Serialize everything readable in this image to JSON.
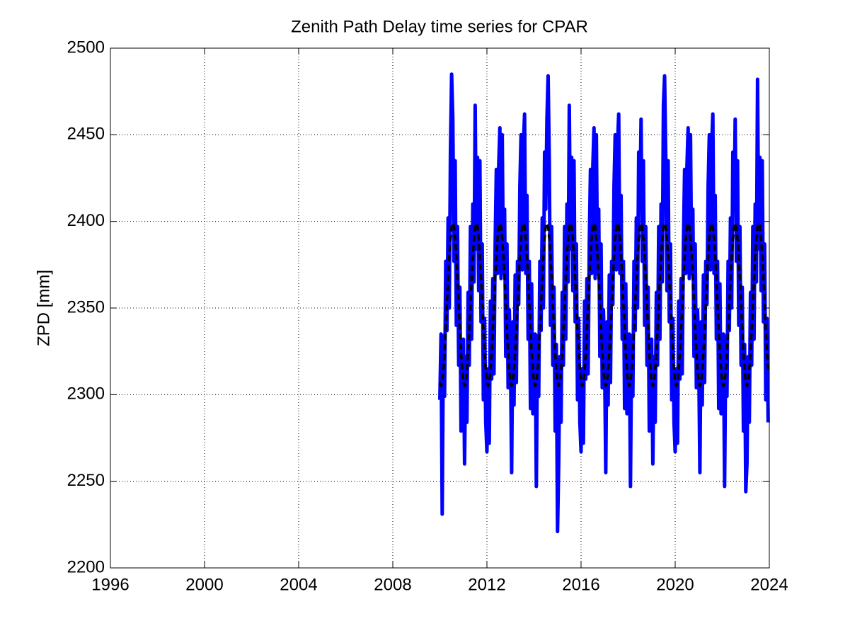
{
  "chart_data": {
    "type": "line",
    "title": "Zenith Path Delay time series for CPAR",
    "ylabel": "ZPD [mm]",
    "xlim": [
      1996,
      2024
    ],
    "xticks": [
      1996,
      2000,
      2004,
      2008,
      2012,
      2016,
      2020,
      2024
    ],
    "ylim": [
      2200,
      2500
    ],
    "yticks": [
      2200,
      2250,
      2300,
      2350,
      2400,
      2450,
      2500
    ],
    "grid": true,
    "x": [
      2010,
      2010.05,
      2010.1,
      2010.15,
      2010.2,
      2010.25,
      2010.3,
      2010.35,
      2010.4,
      2010.45,
      2010.5,
      2010.55,
      2010.6,
      2010.65,
      2010.7,
      2010.75,
      2010.8,
      2010.85,
      2010.9,
      2010.95,
      2011,
      2011.05,
      2011.1,
      2011.15,
      2011.2,
      2011.25,
      2011.3,
      2011.35,
      2011.4,
      2011.45,
      2011.5,
      2011.55,
      2011.6,
      2011.65,
      2011.7,
      2011.75,
      2011.8,
      2011.85,
      2011.9,
      2011.95,
      2012,
      2012.05,
      2012.1,
      2012.15,
      2012.2,
      2012.25,
      2012.3,
      2012.35,
      2012.4,
      2012.45,
      2012.5,
      2012.55,
      2012.6,
      2012.65,
      2012.7,
      2012.75,
      2012.8,
      2012.85,
      2012.9,
      2012.95,
      2013,
      2013.05,
      2013.1,
      2013.15,
      2013.2,
      2013.25,
      2013.3,
      2013.35,
      2013.4,
      2013.45,
      2013.5,
      2013.55,
      2013.6,
      2013.65,
      2013.7,
      2013.75,
      2013.8,
      2013.85,
      2013.9,
      2013.95,
      2014,
      2014.05,
      2014.1,
      2014.15,
      2014.2,
      2014.25,
      2014.3,
      2014.35,
      2014.4,
      2014.45,
      2014.5,
      2014.55,
      2014.6,
      2014.65,
      2014.7,
      2014.75,
      2014.8,
      2014.85,
      2014.9,
      2014.95,
      2015,
      2015.05,
      2015.1,
      2015.15,
      2015.2,
      2015.25,
      2015.3,
      2015.35,
      2015.4,
      2015.45,
      2015.5,
      2015.55,
      2015.6,
      2015.65,
      2015.7,
      2015.75,
      2015.8,
      2015.85,
      2015.9,
      2015.95,
      2016,
      2016.05,
      2016.1,
      2016.15,
      2016.2,
      2016.25,
      2016.3,
      2016.35,
      2016.4,
      2016.45,
      2016.5,
      2016.55,
      2016.6,
      2016.65,
      2016.7,
      2016.75,
      2016.8,
      2016.85,
      2016.9,
      2016.95,
      2017,
      2017.05,
      2017.1,
      2017.15,
      2017.2,
      2017.25,
      2017.3,
      2017.35,
      2017.4,
      2017.45,
      2017.5,
      2017.55,
      2017.6,
      2017.65,
      2017.7,
      2017.75,
      2017.8,
      2017.85,
      2017.9,
      2017.95,
      2018,
      2018.05,
      2018.1,
      2018.15,
      2018.2,
      2018.25,
      2018.3,
      2018.35,
      2018.4,
      2018.45,
      2018.5,
      2018.55,
      2018.6,
      2018.65,
      2018.7,
      2018.75,
      2018.8,
      2018.85,
      2018.9,
      2018.95,
      2019,
      2019.05,
      2019.1,
      2019.15,
      2019.2,
      2019.25,
      2019.3,
      2019.35,
      2019.4,
      2019.45,
      2019.5,
      2019.55,
      2019.6,
      2019.65,
      2019.7,
      2019.75,
      2019.8,
      2019.85,
      2019.9,
      2019.95,
      2020,
      2020.05,
      2020.1,
      2020.15,
      2020.2,
      2020.25,
      2020.3,
      2020.35,
      2020.4,
      2020.45,
      2020.5,
      2020.55,
      2020.6,
      2020.65,
      2020.7,
      2020.75,
      2020.8,
      2020.85,
      2020.9,
      2020.95,
      2021,
      2021.05,
      2021.1,
      2021.15,
      2021.2,
      2021.25,
      2021.3,
      2021.35,
      2021.4,
      2021.45,
      2021.5,
      2021.55,
      2021.6,
      2021.65,
      2021.7,
      2021.75,
      2021.8,
      2021.85,
      2021.9,
      2021.95,
      2022,
      2022.05,
      2022.1,
      2022.15,
      2022.2,
      2022.25,
      2022.3,
      2022.35,
      2022.4,
      2022.45,
      2022.5,
      2022.55,
      2022.6,
      2022.65,
      2022.7,
      2022.75,
      2022.8,
      2022.85,
      2022.9,
      2022.95,
      2023,
      2023.05,
      2023.1,
      2023.15,
      2023.2,
      2023.25,
      2023.3,
      2023.35,
      2023.4,
      2023.45,
      2023.5,
      2023.55,
      2023.6,
      2023.65,
      2023.7,
      2023.75,
      2023.8,
      2023.85,
      2023.9,
      2023.95
    ],
    "series": [
      {
        "color": "#0000ff",
        "values": [
          2297,
          2335,
          2231,
          2334,
          2299,
          2377,
          2337,
          2402,
          2350,
          2440,
          2485,
          2459,
          2377,
          2435,
          2340,
          2397,
          2317,
          2362,
          2279,
          2329,
          2332,
          2260,
          2322,
          2284,
          2359,
          2317,
          2397,
          2332,
          2410,
          2365,
          2467,
          2384,
          2437,
          2360,
          2435,
          2342,
          2387,
          2297,
          2344,
          2284,
          2267,
          2315,
          2272,
          2354,
          2309,
          2367,
          2312,
          2387,
          2430,
          2370,
          2432,
          2454,
          2367,
          2450,
          2370,
          2407,
          2322,
          2387,
          2304,
          2349,
          2322,
          2255,
          2342,
          2294,
          2369,
          2307,
          2377,
          2352,
          2420,
          2450,
          2372,
          2444,
          2462,
          2370,
          2415,
          2332,
          2377,
          2292,
          2364,
          2289,
          2297,
          2335,
          2247,
          2334,
          2299,
          2377,
          2337,
          2402,
          2350,
          2440,
          2407,
          2459,
          2484,
          2435,
          2340,
          2397,
          2317,
          2362,
          2279,
          2329,
          2221,
          2260,
          2322,
          2284,
          2359,
          2317,
          2397,
          2332,
          2410,
          2365,
          2467,
          2384,
          2437,
          2360,
          2435,
          2342,
          2387,
          2297,
          2344,
          2284,
          2267,
          2315,
          2272,
          2354,
          2309,
          2367,
          2312,
          2387,
          2430,
          2370,
          2432,
          2454,
          2367,
          2450,
          2370,
          2407,
          2322,
          2387,
          2304,
          2349,
          2322,
          2255,
          2342,
          2294,
          2369,
          2307,
          2377,
          2352,
          2420,
          2450,
          2372,
          2444,
          2462,
          2370,
          2415,
          2332,
          2377,
          2292,
          2364,
          2289,
          2297,
          2335,
          2247,
          2334,
          2299,
          2377,
          2337,
          2402,
          2350,
          2440,
          2407,
          2459,
          2377,
          2435,
          2340,
          2397,
          2317,
          2362,
          2279,
          2329,
          2332,
          2260,
          2322,
          2284,
          2359,
          2317,
          2397,
          2332,
          2410,
          2365,
          2467,
          2484,
          2437,
          2360,
          2435,
          2342,
          2387,
          2297,
          2344,
          2284,
          2267,
          2315,
          2272,
          2354,
          2309,
          2367,
          2312,
          2387,
          2430,
          2370,
          2432,
          2454,
          2367,
          2450,
          2370,
          2407,
          2322,
          2387,
          2304,
          2349,
          2322,
          2255,
          2342,
          2294,
          2369,
          2307,
          2377,
          2352,
          2420,
          2450,
          2372,
          2444,
          2462,
          2370,
          2415,
          2332,
          2377,
          2292,
          2364,
          2289,
          2297,
          2335,
          2247,
          2334,
          2299,
          2377,
          2337,
          2402,
          2350,
          2440,
          2407,
          2459,
          2377,
          2435,
          2340,
          2397,
          2317,
          2362,
          2279,
          2329,
          2244,
          2260,
          2322,
          2284,
          2359,
          2317,
          2397,
          2332,
          2410,
          2365,
          2482,
          2384,
          2437,
          2360,
          2435,
          2342,
          2387,
          2297,
          2344,
          2284
        ]
      },
      {
        "color": "#000000",
        "dashed": true,
        "values": [
          2307,
          2305,
          2307,
          2314,
          2324,
          2337,
          2352,
          2367,
          2380,
          2390,
          2397,
          2399,
          2397,
          2390,
          2380,
          2367,
          2352,
          2337,
          2324,
          2314,
          2307,
          2305,
          2307,
          2314,
          2324,
          2337,
          2352,
          2367,
          2380,
          2390,
          2397,
          2399,
          2397,
          2390,
          2380,
          2367,
          2352,
          2337,
          2324,
          2314,
          2307,
          2305,
          2307,
          2314,
          2324,
          2337,
          2352,
          2367,
          2380,
          2390,
          2397,
          2399,
          2397,
          2390,
          2380,
          2367,
          2352,
          2337,
          2324,
          2314,
          2307,
          2305,
          2307,
          2314,
          2324,
          2337,
          2352,
          2367,
          2380,
          2390,
          2397,
          2399,
          2397,
          2390,
          2380,
          2367,
          2352,
          2337,
          2324,
          2314,
          2307,
          2305,
          2307,
          2314,
          2324,
          2337,
          2352,
          2367,
          2380,
          2390,
          2397,
          2399,
          2397,
          2390,
          2380,
          2367,
          2352,
          2337,
          2324,
          2314,
          2307,
          2305,
          2307,
          2314,
          2324,
          2337,
          2352,
          2367,
          2380,
          2390,
          2397,
          2399,
          2397,
          2390,
          2380,
          2367,
          2352,
          2337,
          2324,
          2314,
          2307,
          2305,
          2307,
          2314,
          2324,
          2337,
          2352,
          2367,
          2380,
          2390,
          2397,
          2399,
          2397,
          2390,
          2380,
          2367,
          2352,
          2337,
          2324,
          2314,
          2307,
          2305,
          2307,
          2314,
          2324,
          2337,
          2352,
          2367,
          2380,
          2390,
          2397,
          2399,
          2397,
          2390,
          2380,
          2367,
          2352,
          2337,
          2324,
          2314,
          2307,
          2305,
          2307,
          2314,
          2324,
          2337,
          2352,
          2367,
          2380,
          2390,
          2397,
          2399,
          2397,
          2390,
          2380,
          2367,
          2352,
          2337,
          2324,
          2314,
          2307,
          2305,
          2307,
          2314,
          2324,
          2337,
          2352,
          2367,
          2380,
          2390,
          2397,
          2399,
          2397,
          2390,
          2380,
          2367,
          2352,
          2337,
          2324,
          2314,
          2307,
          2305,
          2307,
          2314,
          2324,
          2337,
          2352,
          2367,
          2380,
          2390,
          2397,
          2399,
          2397,
          2390,
          2380,
          2367,
          2352,
          2337,
          2324,
          2314,
          2307,
          2305,
          2307,
          2314,
          2324,
          2337,
          2352,
          2367,
          2380,
          2390,
          2397,
          2399,
          2397,
          2390,
          2380,
          2367,
          2352,
          2337,
          2324,
          2314,
          2307,
          2305,
          2307,
          2314,
          2324,
          2337,
          2352,
          2367,
          2380,
          2390,
          2397,
          2399,
          2397,
          2390,
          2380,
          2367,
          2352,
          2337,
          2324,
          2314,
          2307,
          2305,
          2307,
          2314,
          2324,
          2337,
          2352,
          2367,
          2380,
          2390,
          2397,
          2399,
          2397,
          2390,
          2380,
          2367,
          2352,
          2337,
          2324,
          2314
        ]
      }
    ]
  }
}
